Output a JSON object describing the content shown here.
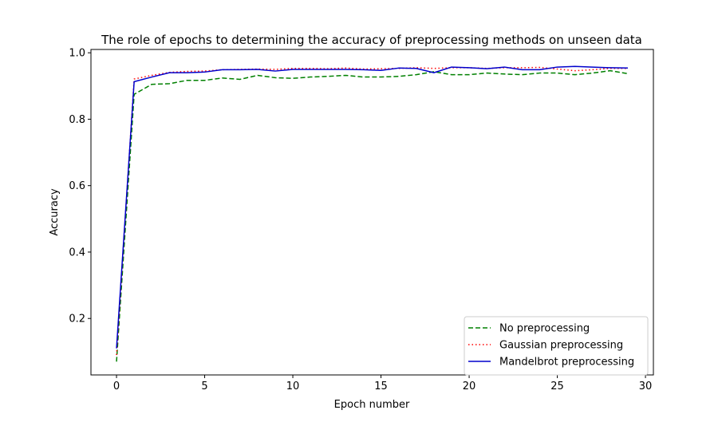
{
  "chart_data": {
    "type": "line",
    "title": "The role of epochs to determining the accuracy of preprocessing methods on unseen data",
    "xlabel": "Epoch number",
    "ylabel": "Accuracy",
    "xlim": [
      -1.45,
      30.45
    ],
    "ylim": [
      0.03,
      1.01
    ],
    "xticks": [
      0,
      5,
      10,
      15,
      20,
      25,
      30
    ],
    "yticks": [
      0.2,
      0.4,
      0.6,
      0.8,
      1.0
    ],
    "xtick_labels": [
      "0",
      "5",
      "10",
      "15",
      "20",
      "25",
      "30"
    ],
    "ytick_labels": [
      "0.2",
      "0.4",
      "0.6",
      "0.8",
      "1.0"
    ],
    "grid": false,
    "legend_position": "lower-right",
    "x": [
      0,
      1,
      2,
      3,
      4,
      5,
      6,
      7,
      8,
      9,
      10,
      11,
      12,
      13,
      14,
      15,
      16,
      17,
      18,
      19,
      20,
      21,
      22,
      23,
      24,
      25,
      26,
      27,
      28,
      29
    ],
    "series": [
      {
        "name": "No preprocessing",
        "color": "#008000",
        "style": "dashed",
        "values": [
          0.07,
          0.875,
          0.905,
          0.907,
          0.917,
          0.917,
          0.924,
          0.92,
          0.932,
          0.925,
          0.923,
          0.927,
          0.929,
          0.932,
          0.927,
          0.927,
          0.929,
          0.934,
          0.943,
          0.934,
          0.934,
          0.939,
          0.936,
          0.934,
          0.939,
          0.939,
          0.934,
          0.939,
          0.946,
          0.937
        ]
      },
      {
        "name": "Gaussian preprocessing",
        "color": "#ff0000",
        "style": "dotted",
        "values": [
          0.09,
          0.921,
          0.932,
          0.941,
          0.944,
          0.945,
          0.949,
          0.95,
          0.951,
          0.95,
          0.953,
          0.953,
          0.952,
          0.954,
          0.951,
          0.952,
          0.953,
          0.955,
          0.953,
          0.955,
          0.955,
          0.953,
          0.955,
          0.955,
          0.956,
          0.951,
          0.946,
          0.949,
          0.953,
          0.953
        ]
      },
      {
        "name": "Mandelbrot preprocessing",
        "color": "#0000cc",
        "style": "solid",
        "values": [
          0.11,
          0.913,
          0.927,
          0.94,
          0.94,
          0.942,
          0.949,
          0.949,
          0.95,
          0.945,
          0.95,
          0.95,
          0.95,
          0.95,
          0.949,
          0.947,
          0.954,
          0.953,
          0.94,
          0.957,
          0.955,
          0.952,
          0.957,
          0.949,
          0.949,
          0.957,
          0.959,
          0.957,
          0.955,
          0.954
        ]
      }
    ]
  }
}
